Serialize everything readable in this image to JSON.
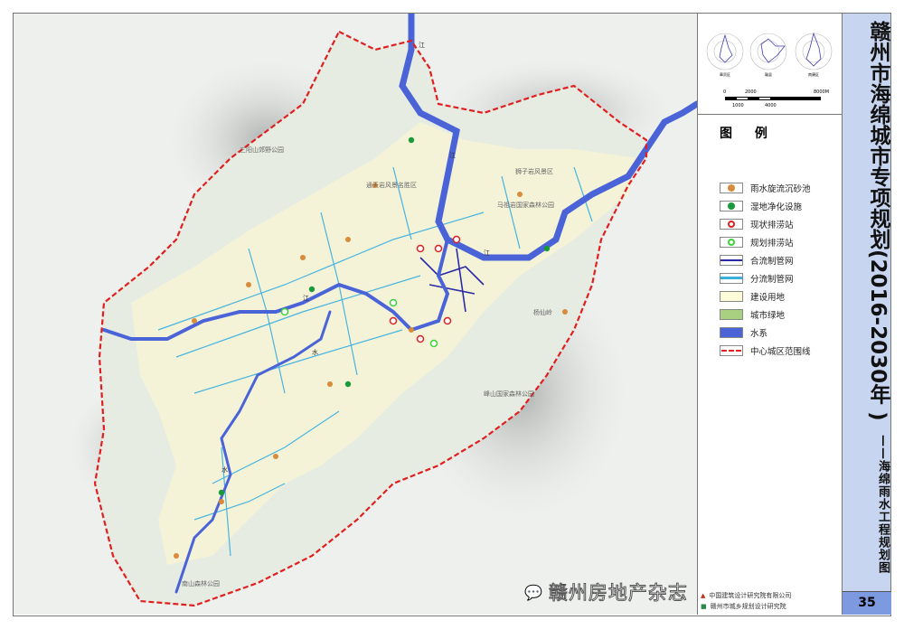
{
  "title": "赣州市海绵城市专项规划(2016-2030年 )",
  "subtitle": "——海绵雨水工程规划图",
  "page_number": "35",
  "scale_bar": {
    "labels_top": [
      "0",
      "2000",
      "8000M"
    ],
    "labels_bottom": [
      "1000",
      "4000"
    ]
  },
  "wind_roses": [
    "章贡区",
    "赣县",
    "南康区"
  ],
  "legend": {
    "title": "图 例",
    "items": [
      {
        "label": "雨水旋流沉砂池",
        "symbol": "orange-dot",
        "color": "#d98a3a"
      },
      {
        "label": "湿地净化设施",
        "symbol": "green-dot",
        "color": "#1a9a3a"
      },
      {
        "label": "现状排涝站",
        "symbol": "red-pump-station",
        "color": "#e02020"
      },
      {
        "label": "规划排涝站",
        "symbol": "green-pump-station",
        "color": "#3ad43a"
      },
      {
        "label": "合流制管网",
        "symbol": "dark-blue-line",
        "color": "#2a2aa8"
      },
      {
        "label": "分流制管网",
        "symbol": "light-blue-line",
        "color": "#3ab0e0"
      },
      {
        "label": "建设用地",
        "symbol": "pale-yellow-fill",
        "color": "#fdfbd8"
      },
      {
        "label": "城市绿地",
        "symbol": "green-fill",
        "color": "#a8d080"
      },
      {
        "label": "水系",
        "symbol": "blue-fill",
        "color": "#4a64d8"
      },
      {
        "label": "中心城区范围线",
        "symbol": "red-dashed-line",
        "color": "#e02020"
      }
    ]
  },
  "map_labels": [
    "三阳山郊野公园",
    "通天岩风景名胜区",
    "狮子岩风景区",
    "马祖岩国家森林公园",
    "峰山国家森林公园",
    "南山森林公园",
    "杨仙岭"
  ],
  "river_labels": [
    "江",
    "江",
    "江",
    "江",
    "水",
    "水"
  ],
  "footer": {
    "org1": "中国建筑设计研究院有限公司",
    "org2": "赣州市城乡规划设计研究院",
    "watermark": "赣州房地产杂志"
  }
}
